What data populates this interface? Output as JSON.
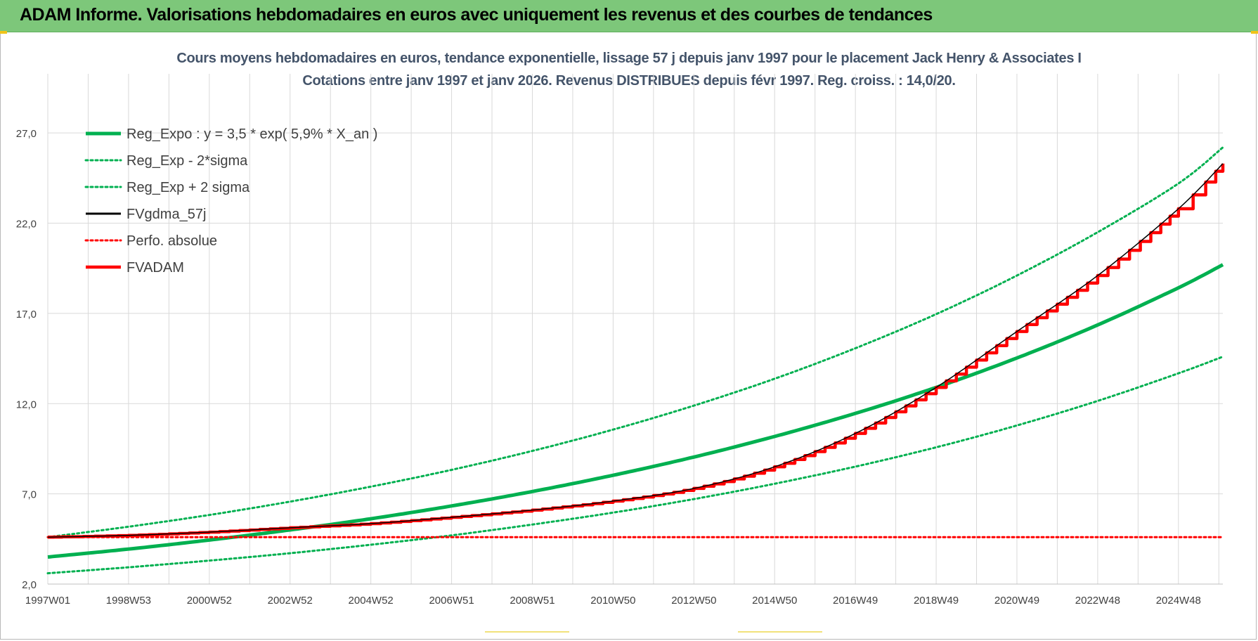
{
  "banner": {
    "title": "ADAM Informe. Valorisations hebdomadaires en euros avec uniquement les revenus et des courbes de tendances"
  },
  "colors": {
    "banner_bg": "#7dc77a",
    "reg_green": "#00b050",
    "fv_red": "#ff0000",
    "fvg_black": "#000000",
    "title_text": "#44546a",
    "grid": "#d9d9d9"
  },
  "chart_data": {
    "type": "line",
    "title": "Cours moyens hebdomadaires en euros, tendance exponentielle, lissage 57 j depuis janv 1997  pour le placement Jack Henry & Associates I",
    "subtitle": "Cotations entre janv 1997 et janv 2026. Revenus DISTRIBUES depuis févr 1997. Reg. croiss. : 14,0/20.",
    "xlabel": "",
    "ylabel": "",
    "ylim": [
      2.0,
      29.5
    ],
    "xlim": [
      1997.0,
      2026.1
    ],
    "y_ticks": [
      "2,0",
      "7,0",
      "12,0",
      "17,0",
      "22,0",
      "27,0"
    ],
    "y_tick_values": [
      2,
      7,
      12,
      17,
      22,
      27
    ],
    "x_ticks": [
      "1997W01",
      "1998W53",
      "2000W52",
      "2002W52",
      "2004W52",
      "2006W51",
      "2008W51",
      "2010W50",
      "2012W50",
      "2014W50",
      "2016W49",
      "2018W49",
      "2020W49",
      "2022W48",
      "2024W48"
    ],
    "x_tick_values": [
      1997.0,
      1999.0,
      2001.0,
      2003.0,
      2005.0,
      2007.0,
      2009.0,
      2011.0,
      2013.0,
      2015.0,
      2017.0,
      2019.0,
      2021.0,
      2023.0,
      2025.0
    ],
    "grid": true,
    "legend_position": "top-left",
    "series": [
      {
        "name": "Reg_Expo : y = 3,5 * exp( 5,9% *  X_an )",
        "style": "solid-thick",
        "color": "#00b050",
        "x": [
          1997,
          1999,
          2001,
          2003,
          2005,
          2007,
          2009,
          2011,
          2013,
          2015,
          2017,
          2019,
          2021,
          2023,
          2025,
          2026.1
        ],
        "y": [
          3.5,
          3.94,
          4.44,
          5.0,
          5.62,
          6.33,
          7.13,
          8.03,
          9.04,
          10.18,
          11.46,
          12.9,
          14.53,
          16.36,
          18.42,
          19.7
        ]
      },
      {
        "name": "Reg_Exp - 2*sigma",
        "style": "dotted",
        "color": "#00b050",
        "x": [
          1997,
          1999,
          2001,
          2003,
          2005,
          2007,
          2009,
          2011,
          2013,
          2015,
          2017,
          2019,
          2021,
          2023,
          2025,
          2026.1
        ],
        "y": [
          2.6,
          2.93,
          3.3,
          3.71,
          4.18,
          4.7,
          5.3,
          5.96,
          6.71,
          7.56,
          8.51,
          9.58,
          10.79,
          12.15,
          13.68,
          14.6
        ]
      },
      {
        "name": "Reg_Exp + 2 sigma",
        "style": "dotted",
        "color": "#00b050",
        "x": [
          1997,
          1999,
          2001,
          2003,
          2005,
          2007,
          2009,
          2011,
          2013,
          2015,
          2017,
          2019,
          2021,
          2023,
          2025,
          2026.1
        ],
        "y": [
          4.6,
          5.18,
          5.83,
          6.57,
          7.4,
          8.33,
          9.38,
          10.56,
          11.89,
          13.38,
          15.07,
          16.96,
          19.1,
          21.5,
          24.2,
          26.2
        ]
      },
      {
        "name": "FVgdma_57j",
        "style": "solid-thin",
        "color": "#000000",
        "x": [
          1997,
          1999,
          2001,
          2003,
          2005,
          2007,
          2009,
          2011,
          2013,
          2015,
          2017,
          2019,
          2021,
          2023,
          2025,
          2026.1
        ],
        "y": [
          4.6,
          4.7,
          4.88,
          5.12,
          5.35,
          5.7,
          6.1,
          6.6,
          7.3,
          8.5,
          10.35,
          12.9,
          16.0,
          19.1,
          22.8,
          25.3
        ]
      },
      {
        "name": "Perfo. absolue",
        "style": "dotted",
        "color": "#ff0000",
        "x": [
          1997,
          2026.1
        ],
        "y": [
          4.6,
          4.6
        ]
      },
      {
        "name": "FVADAM",
        "style": "solid-thick-stepped",
        "color": "#ff0000",
        "x": [
          1997,
          1999,
          2001,
          2003,
          2005,
          2007,
          2009,
          2011,
          2013,
          2015,
          2017,
          2019,
          2021,
          2023,
          2025,
          2026.1
        ],
        "y": [
          4.6,
          4.7,
          4.88,
          5.12,
          5.35,
          5.7,
          6.1,
          6.6,
          7.3,
          8.5,
          10.35,
          12.9,
          16.0,
          19.1,
          22.8,
          25.3
        ]
      }
    ]
  }
}
